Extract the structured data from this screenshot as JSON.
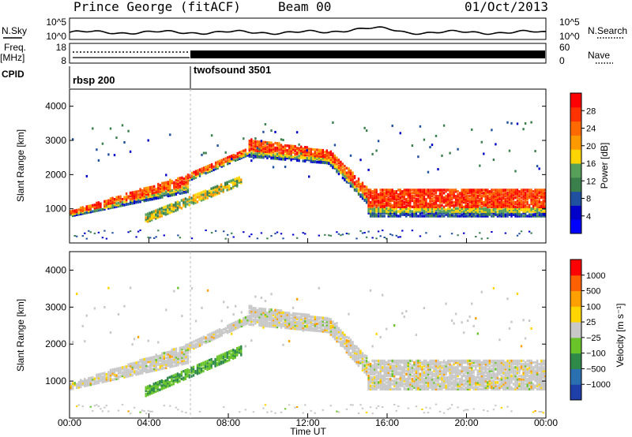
{
  "header": {
    "station": "Prince George (fitACF)",
    "beam": "Beam 00",
    "date": "01/Oct/2013"
  },
  "side_labels": {
    "nsky": "N.Sky",
    "nsearch": "N.Search",
    "freq_line1": "Freq.",
    "freq_line2": "[MHz]",
    "nave": "Nave",
    "cpid": "CPID"
  },
  "noise_axis": {
    "left_ticks": [
      "10^5",
      "10^0"
    ],
    "right_ticks": [
      "10^5",
      "10^0"
    ]
  },
  "freq_axis": {
    "left_ticks": [
      "18",
      "8"
    ],
    "right_ticks": [
      "60",
      "0"
    ]
  },
  "cpid_segments": [
    {
      "name": "rbsp 200",
      "start_hour": 0
    },
    {
      "name": "twofsound 3501",
      "start_hour": 6
    }
  ],
  "chart_data": [
    {
      "type": "heatmap",
      "name": "power",
      "ylabel": "Slant Range [km]",
      "xlabel": "",
      "xlim_hours": [
        0,
        24
      ],
      "ylim_km": [
        0,
        4500
      ],
      "y_ticks": [
        "1000",
        "2000",
        "3000",
        "4000"
      ],
      "colorbar": {
        "label": "Power [dB]",
        "ticks": [
          "28",
          "24",
          "20",
          "16",
          "12",
          "8",
          "4"
        ],
        "colors": [
          "#0000ff",
          "#0000c8",
          "#2050a0",
          "#3b7f4d",
          "#57a05a",
          "#ffd400",
          "#ff9900",
          "#ff6a00",
          "#ff3300",
          "#ff0000"
        ]
      }
    },
    {
      "type": "heatmap",
      "name": "velocity",
      "ylabel": "Slant Range [km]",
      "xlabel": "Time UT",
      "xlim_hours": [
        0,
        24
      ],
      "ylim_km": [
        0,
        4500
      ],
      "y_ticks": [
        "1000",
        "2000",
        "3000",
        "4000"
      ],
      "x_ticks": [
        "00:00",
        "04:00",
        "08:00",
        "12:00",
        "16:00",
        "20:00",
        "00:00"
      ],
      "colorbar": {
        "label": "Velocity [m s⁻¹]",
        "ticks": [
          "1000",
          "500",
          "100",
          "25",
          "−25",
          "−100",
          "−500",
          "−1000"
        ],
        "colors": [
          "#1f3fa8",
          "#2a6fb0",
          "#2f8a4a",
          "#69c42a",
          "#c8c8c8",
          "#ffd500",
          "#ffa000",
          "#ff6000",
          "#ff0000"
        ]
      }
    }
  ]
}
